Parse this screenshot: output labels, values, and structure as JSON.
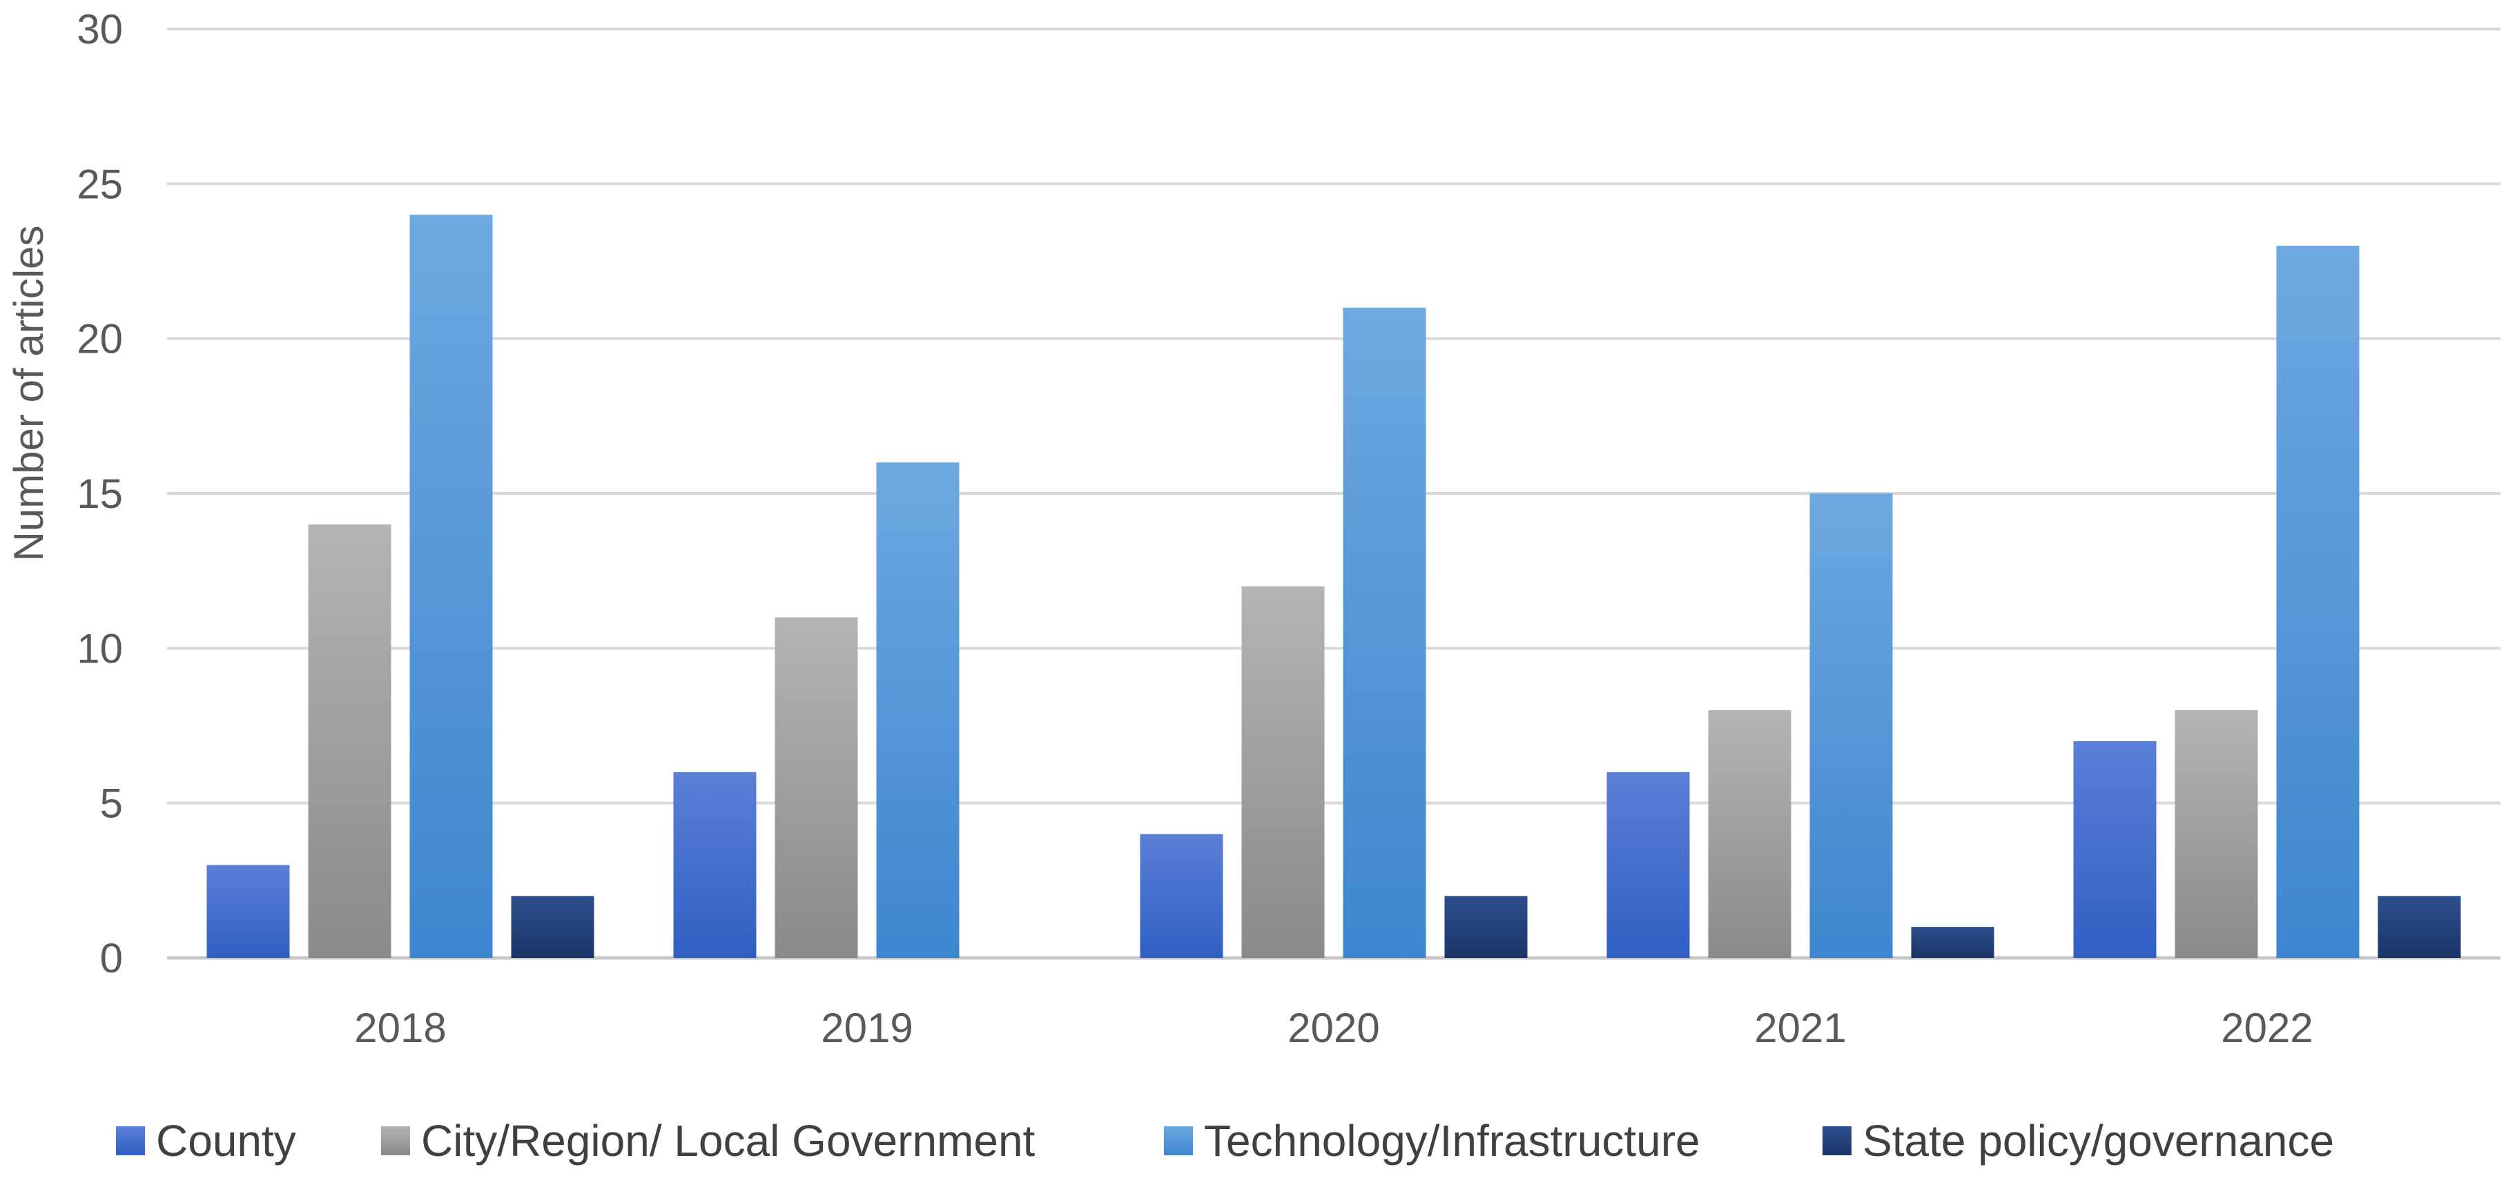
{
  "chart_data": {
    "type": "bar",
    "title": "",
    "xlabel": "",
    "ylabel": "Number of articles",
    "ylim": [
      0,
      30
    ],
    "yticks": [
      0,
      5,
      10,
      15,
      20,
      25,
      30
    ],
    "grid": true,
    "legend_position": "bottom",
    "categories": [
      "2018",
      "2019",
      "2020",
      "2021",
      "2022"
    ],
    "series": [
      {
        "name": "County",
        "color_top": "#5b7fd6",
        "color_bottom": "#2f5fc4",
        "values": [
          3,
          6,
          4,
          6,
          7
        ]
      },
      {
        "name": "City/Region/ Local Government",
        "color_top": "#b4b4b4",
        "color_bottom": "#8a8a8a",
        "values": [
          14,
          11,
          12,
          8,
          8
        ]
      },
      {
        "name": "Technology/Infrastructure",
        "color_top": "#6ea8e0",
        "color_bottom": "#3d86cf",
        "values": [
          24,
          16,
          21,
          15,
          23
        ]
      },
      {
        "name": "State policy/governance",
        "color_top": "#2c4f8c",
        "color_bottom": "#1a3468",
        "values": [
          2,
          0,
          2,
          1,
          2
        ]
      }
    ]
  }
}
